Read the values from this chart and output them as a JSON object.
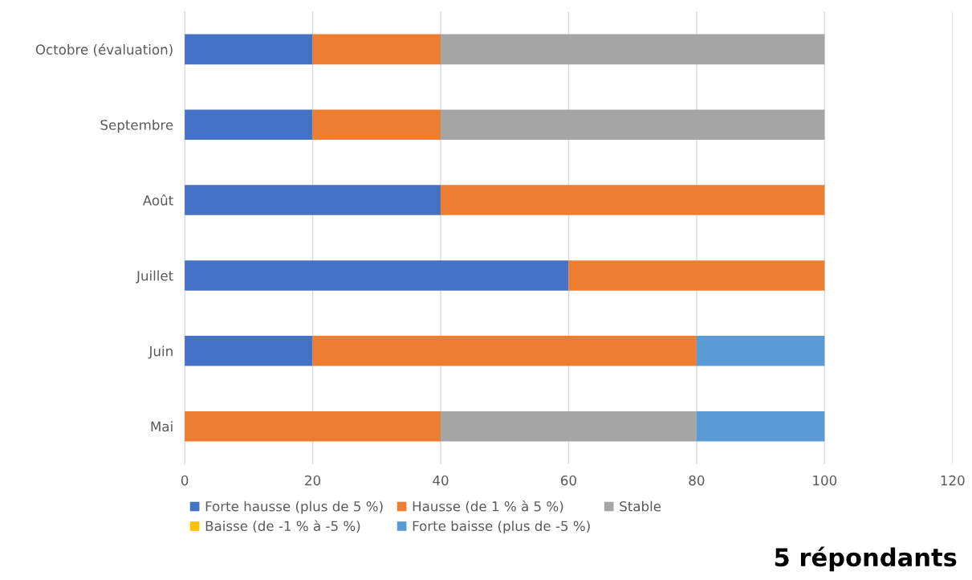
{
  "chart_data": {
    "type": "bar",
    "orientation": "horizontal",
    "stacked": true,
    "categories": [
      "Octobre (évaluation)",
      "Septembre",
      "Août",
      "Juillet",
      "Juin",
      "Mai"
    ],
    "series": [
      {
        "name": "Forte hausse (plus de 5 %)",
        "color": "#4472c4",
        "values": [
          20,
          20,
          40,
          60,
          20,
          0
        ]
      },
      {
        "name": "Hausse (de 1 % à 5 %)",
        "color": "#ed7d31",
        "values": [
          20,
          20,
          60,
          40,
          60,
          40
        ]
      },
      {
        "name": "Stable",
        "color": "#a5a5a5",
        "values": [
          60,
          60,
          0,
          0,
          0,
          40
        ]
      },
      {
        "name": "Baisse (de -1 % à -5 %)",
        "color": "#ffc000",
        "values": [
          0,
          0,
          0,
          0,
          0,
          0
        ]
      },
      {
        "name": "Forte baisse (plus de -5 %)",
        "color": "#5b9bd5",
        "values": [
          0,
          0,
          0,
          0,
          20,
          20
        ]
      }
    ],
    "xlim": [
      0,
      120
    ],
    "xticks": [
      0,
      20,
      40,
      60,
      80,
      100,
      120
    ],
    "grid": "x",
    "legend": "bottom",
    "annotations": [
      "5 répondants"
    ]
  }
}
